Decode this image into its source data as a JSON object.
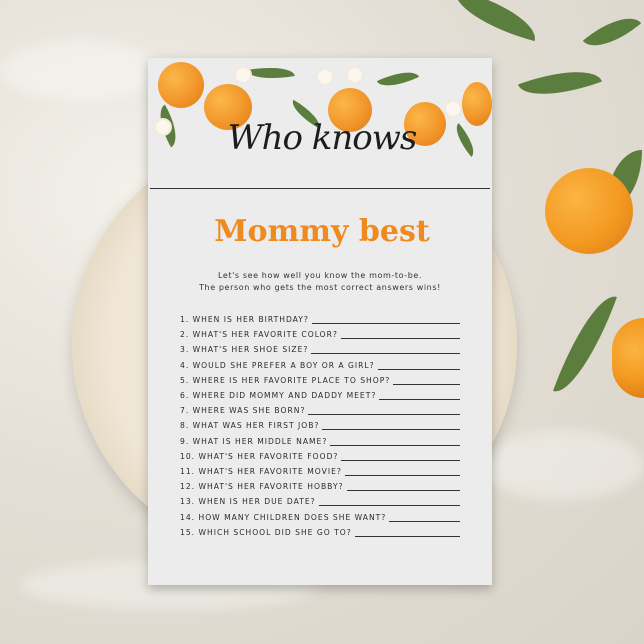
{
  "card": {
    "title_script": "Who knows",
    "title_bold": "Mommy best",
    "intro": [
      "Let's see how well you know the mom-to-be.",
      "The person who gets the most correct answers wins!"
    ],
    "questions": [
      "1. WHEN IS HER BIRTHDAY?",
      "2. WHAT'S HER FAVORITE COLOR?",
      "3. WHAT'S HER SHOE SIZE?",
      "4. WOULD SHE PREFER A BOY OR A GIRL?",
      "5. WHERE IS HER FAVORITE PLACE TO SHOP?",
      "6. WHERE DID MOMMY AND DADDY MEET?",
      "7. WHERE WAS SHE BORN?",
      "8. WHAT WAS HER FIRST JOB?",
      "9. WHAT IS HER MIDDLE NAME?",
      "10. WHAT'S HER FAVORITE FOOD?",
      "11. WHAT'S HER FAVORITE MOVIE?",
      "12. WHAT'S HER FAVORITE HOBBY?",
      "13. WHEN IS HER DUE DATE?",
      "14. HOW MANY CHILDREN DOES SHE WANT?",
      "15. WHICH SCHOOL DID SHE GO TO?"
    ]
  },
  "colors": {
    "accent": "#ef8a1f",
    "card": "#ececec",
    "leaf": "#5b7d3e"
  }
}
